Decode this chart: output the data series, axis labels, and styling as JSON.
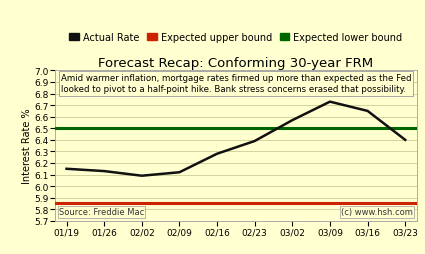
{
  "title": "Forecast Recap: Conforming 30-year FRM",
  "ylabel": "Interest Rate %",
  "xlabels": [
    "01/19",
    "01/26",
    "02/02",
    "02/09",
    "02/16",
    "02/23",
    "03/02",
    "03/09",
    "03/16",
    "03/23"
  ],
  "actual_x": [
    0,
    1,
    2,
    3,
    4,
    5,
    6,
    7,
    8,
    9
  ],
  "actual_y": [
    6.15,
    6.13,
    6.09,
    6.12,
    6.28,
    6.39,
    6.57,
    6.73,
    6.65,
    6.4
  ],
  "upper_bound": 5.855,
  "lower_bound": 6.5,
  "ylim": [
    5.7,
    7.0
  ],
  "yticks": [
    5.7,
    5.8,
    5.9,
    6.0,
    6.1,
    6.2,
    6.3,
    6.4,
    6.5,
    6.6,
    6.7,
    6.8,
    6.9,
    7.0
  ],
  "bg_color": "#ffffd0",
  "plot_bg": "#ffffd0",
  "upper_color": "#cc2200",
  "lower_color": "#006600",
  "actual_color": "#111111",
  "annotation_line1": "Amid warmer inflation, mortgage rates firmed up more than expected as the Fed",
  "annotation_line2": "looked to pivot to a half-point hike. Bank stress concerns erased that possibility.",
  "source_text": "Source: Freddie Mac",
  "copyright_text": "(c) www.hsh.com",
  "grid_color": "#cccc99",
  "title_fontsize": 9.5,
  "label_fontsize": 7,
  "tick_fontsize": 6.5,
  "legend_fontsize": 7
}
